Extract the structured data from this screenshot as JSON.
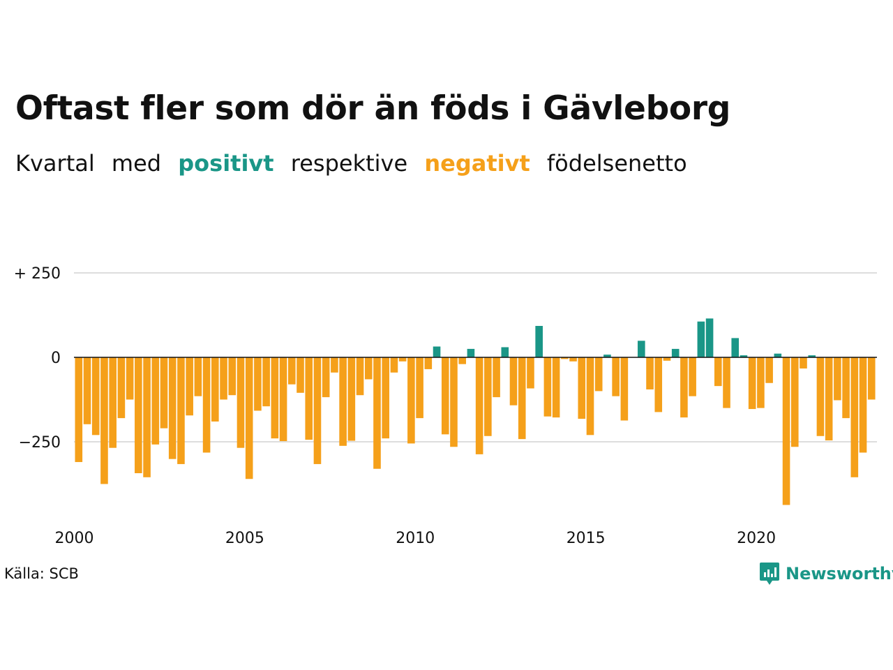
{
  "title": "Oftast fler som dör än föds i Gävleborg",
  "subtitle": {
    "w1": "Kvartal",
    "w2": "med",
    "positive": "positivt",
    "w3": "respektive",
    "negative": "negativt",
    "w4": "födelsenetto"
  },
  "colors": {
    "positive": "#1a9687",
    "negative": "#f5a01a",
    "grid": "#dddddd",
    "text": "#111111"
  },
  "source": "Källa: SCB",
  "brand": {
    "name": "Newsworthy",
    "icon": "newsworthy-logo-icon"
  },
  "chart_data": {
    "type": "bar",
    "start": {
      "year": 2000,
      "quarter": 1
    },
    "period": "quarter",
    "values": [
      -310,
      -198,
      -230,
      -375,
      -268,
      -180,
      -125,
      -343,
      -355,
      -258,
      -210,
      -301,
      -316,
      -172,
      -115,
      -282,
      -190,
      -125,
      -112,
      -268,
      -360,
      -158,
      -145,
      -240,
      -248,
      -80,
      -105,
      -244,
      -316,
      -118,
      -45,
      -262,
      -247,
      -112,
      -65,
      -330,
      -240,
      -45,
      -12,
      -255,
      -180,
      -35,
      32,
      -228,
      -265,
      -20,
      25,
      -287,
      -233,
      -118,
      30,
      -142,
      -242,
      -92,
      93,
      -175,
      -178,
      -5,
      -12,
      -182,
      -230,
      -100,
      8,
      -115,
      -187,
      0,
      49,
      -95,
      -162,
      -10,
      25,
      -178,
      -115,
      106,
      115,
      -85,
      -150,
      57,
      6,
      -153,
      -150,
      -76,
      11,
      -437,
      -265,
      -33,
      6,
      -233,
      -246,
      -127,
      -180,
      -355,
      -282,
      -125
    ],
    "x_ticks": [
      "2000",
      "2005",
      "2010",
      "2015",
      "2020"
    ],
    "y_ticks": [
      {
        "value": 250,
        "label": "+ 250"
      },
      {
        "value": 0,
        "label": "0"
      },
      {
        "value": -250,
        "label": "−250"
      }
    ],
    "ylim": [
      -440,
      250
    ],
    "grid": true,
    "legend": "none"
  }
}
